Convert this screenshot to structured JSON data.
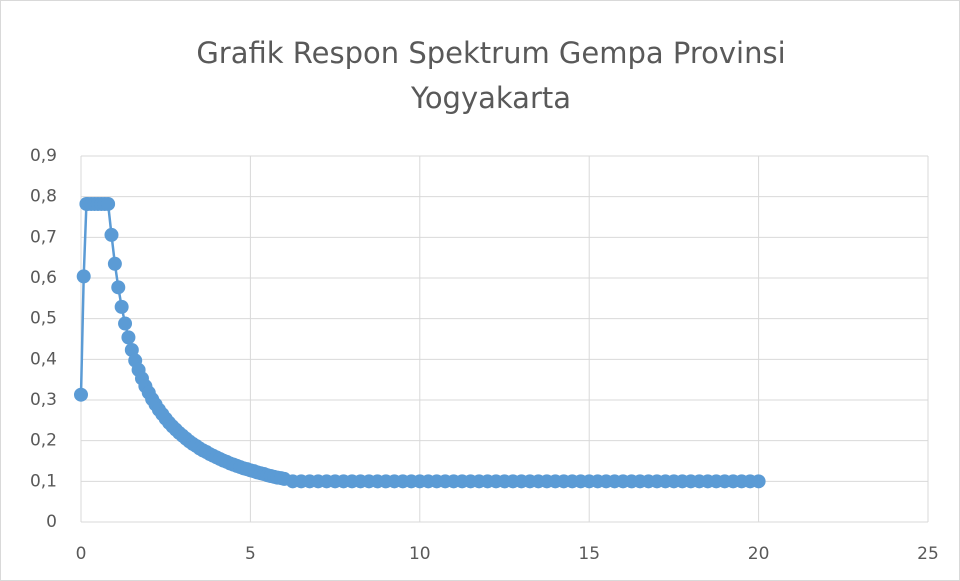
{
  "chart_data": {
    "type": "line",
    "title": "Grafik Respon Spektrum Gempa Provinsi Yogyakarta",
    "color": "#5b9bd5",
    "grid": true,
    "markers": true,
    "x": [
      0,
      0.08,
      0.16,
      0.2,
      0.3,
      0.4,
      0.5,
      0.6,
      0.7,
      0.8,
      0.9,
      1.0,
      1.1,
      1.2,
      1.3,
      1.4,
      1.5,
      1.6,
      1.7,
      1.8,
      1.9,
      2.0,
      2.1,
      2.2,
      2.3,
      2.4,
      2.5,
      2.6,
      2.7,
      2.8,
      2.9,
      3.0,
      3.1,
      3.2,
      3.3,
      3.4,
      3.5,
      3.6,
      3.7,
      3.8,
      3.9,
      4.0,
      4.1,
      4.2,
      4.3,
      4.4,
      4.5,
      4.6,
      4.7,
      4.8,
      4.9,
      5.0,
      5.1,
      5.2,
      5.3,
      5.4,
      5.5,
      5.6,
      5.7,
      5.8,
      5.9,
      6.0,
      6.25,
      6.5,
      6.75,
      7,
      7.25,
      7.5,
      7.75,
      8,
      8.25,
      8.5,
      8.75,
      9,
      9.25,
      9.5,
      9.75,
      10,
      10.25,
      10.5,
      10.75,
      11,
      11.25,
      11.5,
      11.75,
      12,
      12.25,
      12.5,
      12.75,
      13,
      13.25,
      13.5,
      13.75,
      14,
      14.25,
      14.5,
      14.75,
      15,
      15.25,
      15.5,
      15.75,
      16,
      16.25,
      16.5,
      16.75,
      17,
      17.25,
      17.5,
      17.75,
      18,
      18.25,
      18.5,
      18.75,
      19,
      19.25,
      19.5,
      19.75,
      20
    ],
    "values": [
      0.313,
      0.604,
      0.782,
      0.782,
      0.782,
      0.782,
      0.782,
      0.782,
      0.782,
      0.782,
      0.706,
      0.635,
      0.577,
      0.529,
      0.488,
      0.454,
      0.423,
      0.397,
      0.374,
      0.353,
      0.334,
      0.318,
      0.302,
      0.289,
      0.276,
      0.265,
      0.254,
      0.244,
      0.235,
      0.227,
      0.219,
      0.212,
      0.205,
      0.198,
      0.192,
      0.187,
      0.181,
      0.176,
      0.172,
      0.167,
      0.163,
      0.159,
      0.155,
      0.151,
      0.148,
      0.144,
      0.141,
      0.138,
      0.135,
      0.132,
      0.13,
      0.127,
      0.125,
      0.122,
      0.12,
      0.118,
      0.115,
      0.113,
      0.111,
      0.109,
      0.108,
      0.106,
      0.1,
      0.1,
      0.1,
      0.1,
      0.1,
      0.1,
      0.1,
      0.1,
      0.1,
      0.1,
      0.1,
      0.1,
      0.1,
      0.1,
      0.1,
      0.1,
      0.1,
      0.1,
      0.1,
      0.1,
      0.1,
      0.1,
      0.1,
      0.1,
      0.1,
      0.1,
      0.1,
      0.1,
      0.1,
      0.1,
      0.1,
      0.1,
      0.1,
      0.1,
      0.1,
      0.1,
      0.1,
      0.1,
      0.1,
      0.1,
      0.1,
      0.1,
      0.1,
      0.1,
      0.1,
      0.1,
      0.1,
      0.1,
      0.1,
      0.1,
      0.1,
      0.1,
      0.1,
      0.1,
      0.1,
      0.1
    ],
    "xlim": [
      0,
      25
    ],
    "xticks": [
      0,
      5,
      10,
      15,
      20,
      25
    ],
    "ylim": [
      0,
      0.9
    ],
    "yticks": [
      0,
      {
        "value": 0.1,
        "label": "0,1"
      },
      {
        "value": 0.2,
        "label": "0,2"
      },
      {
        "value": 0.3,
        "label": "0,3"
      },
      {
        "value": 0.4,
        "label": "0,4"
      },
      {
        "value": 0.5,
        "label": "0,5"
      },
      {
        "value": 0.6,
        "label": "0,6"
      },
      {
        "value": 0.7,
        "label": "0,7"
      },
      {
        "value": 0.8,
        "label": "0,8"
      },
      {
        "value": 0.9,
        "label": "0,9"
      }
    ]
  }
}
